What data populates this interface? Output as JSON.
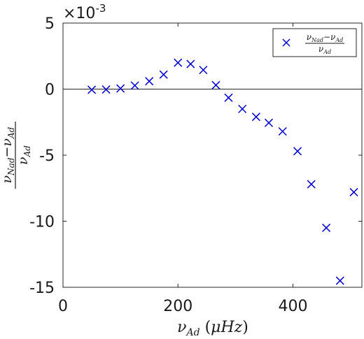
{
  "chart_data": {
    "type": "scatter",
    "exponent_label": "×10",
    "exponent_power": "-3",
    "x_ticks": [
      0,
      200,
      400
    ],
    "x_tick_labels": [
      "0",
      "200",
      "400"
    ],
    "y_ticks": [
      5,
      0,
      -5,
      -10,
      -15
    ],
    "y_tick_labels": [
      "5",
      "0",
      "-5",
      "-10",
      "-15"
    ],
    "xlim": [
      0,
      520
    ],
    "ylim": [
      -15,
      5
    ],
    "zero_line": true,
    "grid": false,
    "legend_position": "top-right",
    "marker": "x",
    "marker_color": "#0000cc",
    "xlabel": {
      "nu": "ν",
      "sub": "Ad",
      "unit_open": " (",
      "mu": "μ",
      "unit_rest": "Hz",
      "unit_close": ")"
    },
    "ylabel": {
      "num_nu1": "ν",
      "num_sub1": "Nad",
      "minus": "−",
      "num_nu2": "ν",
      "num_sub2": "Ad",
      "den_nu": "ν",
      "den_sub": "Ad"
    },
    "series": [
      {
        "x": [
          50,
          75,
          100,
          125,
          150,
          175,
          200,
          222,
          244,
          266,
          288,
          312,
          336,
          358,
          382,
          408,
          432,
          458,
          482,
          506
        ],
        "y": [
          -0.05,
          -0.03,
          0.05,
          0.27,
          0.6,
          1.1,
          2.0,
          1.9,
          1.45,
          0.3,
          -0.65,
          -1.5,
          -2.1,
          -2.55,
          -3.2,
          -4.7,
          -7.2,
          -10.5,
          -14.5,
          -7.8
        ]
      }
    ]
  }
}
